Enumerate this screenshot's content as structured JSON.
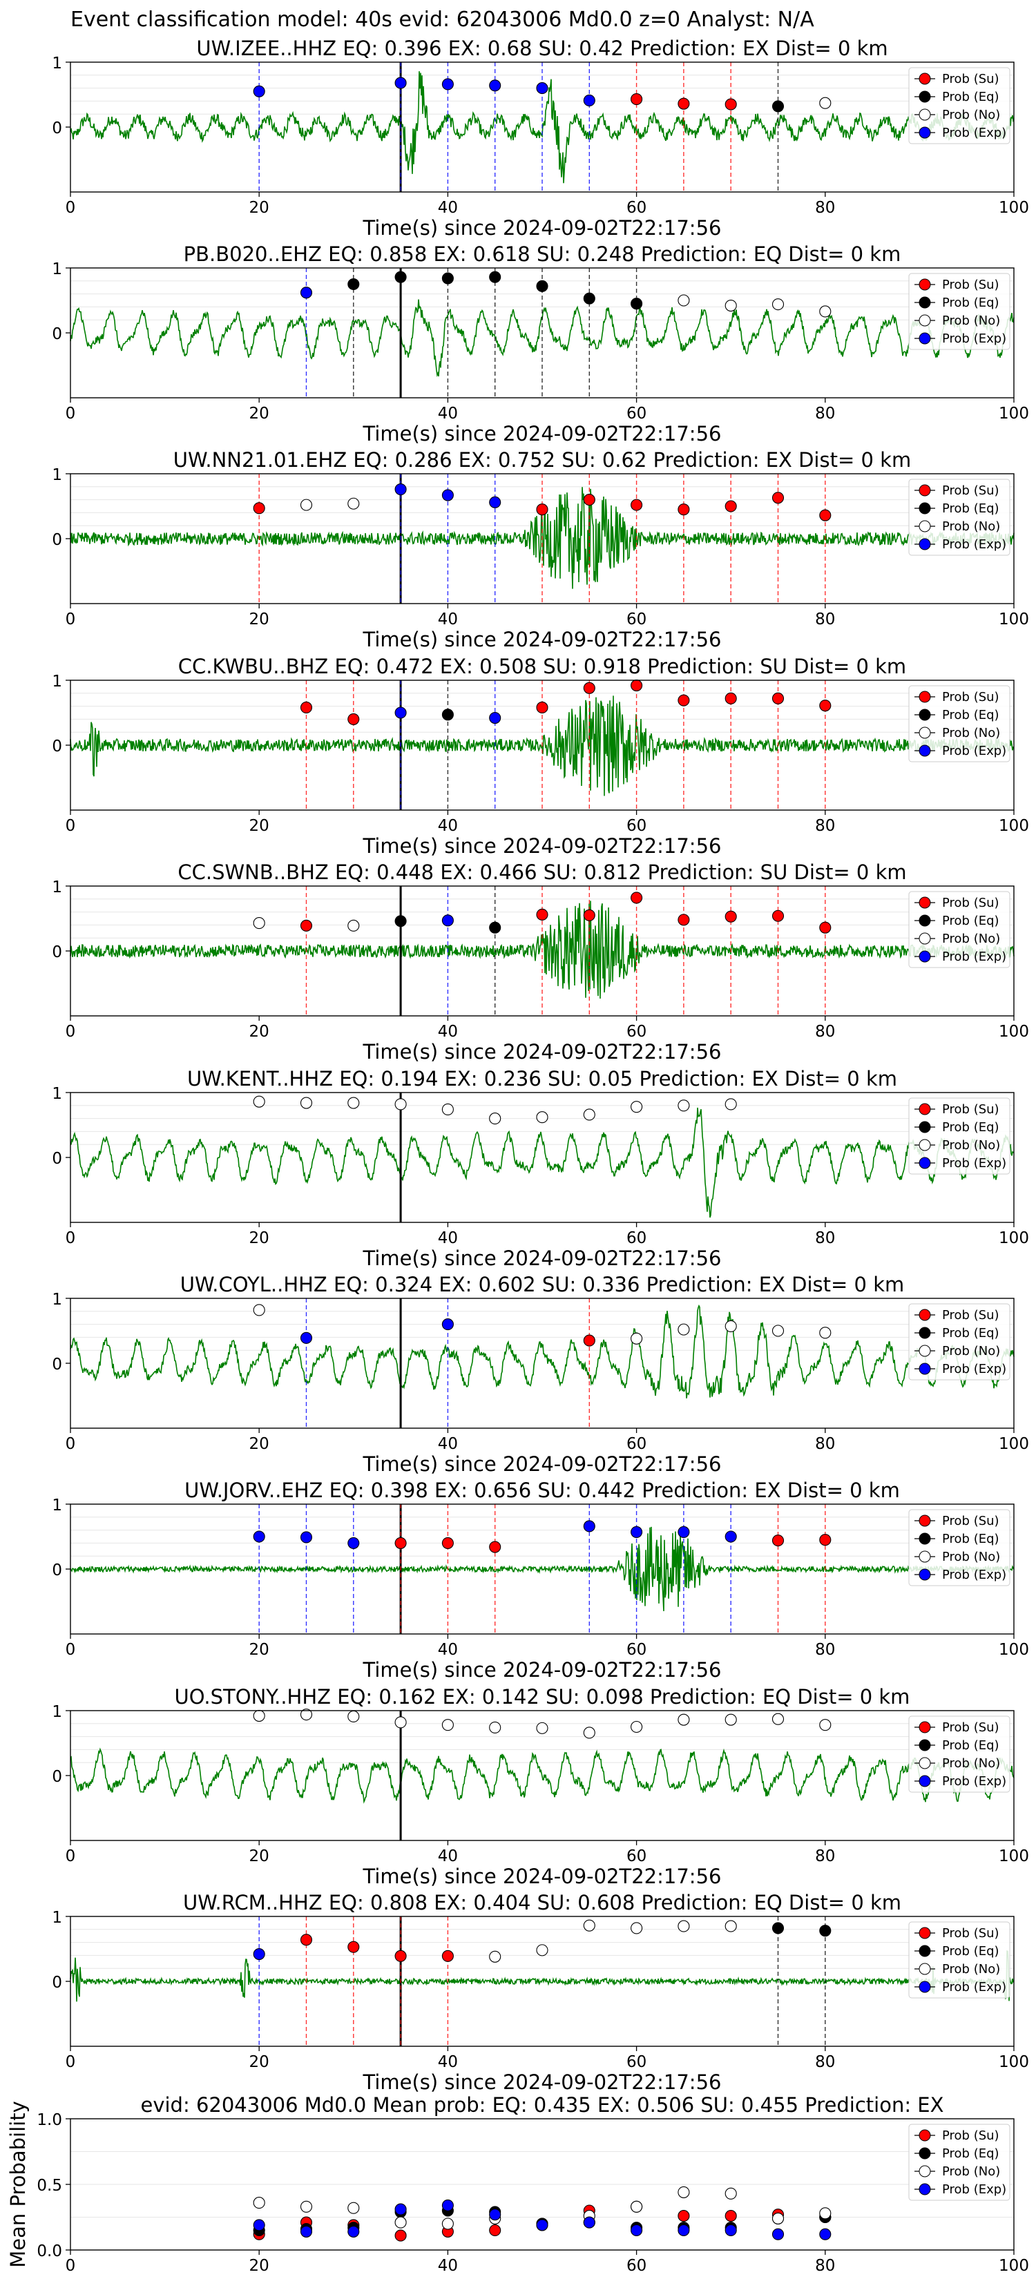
{
  "figure": {
    "suptitle": "Event classification model: 40s evid: 62043006 Md0.0 z=0 Analyst: N/A",
    "colors": {
      "waveform": "#008000",
      "su": "#ff0000",
      "eq": "#000000",
      "no": "#ffffff",
      "exp": "#0000ff",
      "grid": "#e6e6e6"
    },
    "legend": [
      "Prob (Su)",
      "Prob (Eq)",
      "Prob (No)",
      "Prob (Exp)"
    ]
  },
  "chart_data": [
    {
      "type": "line",
      "title": "UW.IZEE..HHZ   EQ: 0.396  EX: 0.68  SU: 0.42   Prediction: EX    Dist= 0 km",
      "xlabel": "Time(s) since 2024-09-02T22:17:56",
      "xlim": [
        0,
        100
      ],
      "xticks": [
        0,
        20,
        40,
        60,
        80,
        100
      ],
      "ylim": [
        -1,
        1
      ],
      "yticks": [
        0,
        1
      ],
      "waveform": {
        "style": "normal",
        "burst": [
          [
            35,
            41,
            1.0
          ],
          [
            50,
            56,
            1.0
          ]
        ]
      },
      "origin_time": 35,
      "points": [
        {
          "t": 20,
          "p": 0.55,
          "c": "exp"
        },
        {
          "t": 35,
          "p": 0.68,
          "c": "exp"
        },
        {
          "t": 40,
          "p": 0.66,
          "c": "exp"
        },
        {
          "t": 45,
          "p": 0.64,
          "c": "exp"
        },
        {
          "t": 50,
          "p": 0.6,
          "c": "exp"
        },
        {
          "t": 55,
          "p": 0.41,
          "c": "exp"
        },
        {
          "t": 60,
          "p": 0.43,
          "c": "su"
        },
        {
          "t": 65,
          "p": 0.36,
          "c": "su"
        },
        {
          "t": 70,
          "p": 0.35,
          "c": "su"
        },
        {
          "t": 75,
          "p": 0.32,
          "c": "eq"
        },
        {
          "t": 80,
          "p": 0.37,
          "c": "no"
        }
      ]
    },
    {
      "type": "line",
      "title": "PB.B020..EHZ   EQ: 0.858  EX: 0.618  SU: 0.248   Prediction: EQ    Dist= 0 km",
      "xlabel": "Time(s) since 2024-09-02T22:17:56",
      "xlim": [
        0,
        100
      ],
      "xticks": [
        0,
        20,
        40,
        60,
        80,
        100
      ],
      "ylim": [
        -1,
        1
      ],
      "yticks": [
        0,
        1
      ],
      "waveform": {
        "style": "smooth",
        "burst": [
          [
            35,
            46,
            0.7
          ]
        ]
      },
      "origin_time": 35,
      "points": [
        {
          "t": 25,
          "p": 0.62,
          "c": "exp"
        },
        {
          "t": 30,
          "p": 0.75,
          "c": "eq"
        },
        {
          "t": 35,
          "p": 0.86,
          "c": "eq"
        },
        {
          "t": 40,
          "p": 0.84,
          "c": "eq"
        },
        {
          "t": 45,
          "p": 0.86,
          "c": "eq"
        },
        {
          "t": 50,
          "p": 0.72,
          "c": "eq"
        },
        {
          "t": 55,
          "p": 0.53,
          "c": "eq"
        },
        {
          "t": 60,
          "p": 0.45,
          "c": "eq"
        },
        {
          "t": 65,
          "p": 0.5,
          "c": "no"
        },
        {
          "t": 70,
          "p": 0.42,
          "c": "no"
        },
        {
          "t": 75,
          "p": 0.44,
          "c": "no"
        },
        {
          "t": 80,
          "p": 0.33,
          "c": "no"
        }
      ]
    },
    {
      "type": "line",
      "title": "UW.NN21.01.EHZ   EQ: 0.286  EX: 0.752  SU: 0.62   Prediction: EX    Dist= 0 km",
      "xlabel": "Time(s) since 2024-09-02T22:17:56",
      "xlim": [
        0,
        100
      ],
      "xticks": [
        0,
        20,
        40,
        60,
        80,
        100
      ],
      "ylim": [
        -1,
        1
      ],
      "yticks": [
        0,
        1
      ],
      "waveform": {
        "style": "noisy",
        "burst": [
          [
            48,
            70,
            1.0
          ]
        ]
      },
      "origin_time": 35,
      "points": [
        {
          "t": 20,
          "p": 0.47,
          "c": "su"
        },
        {
          "t": 25,
          "p": 0.52,
          "c": "no"
        },
        {
          "t": 30,
          "p": 0.54,
          "c": "no"
        },
        {
          "t": 35,
          "p": 0.76,
          "c": "exp"
        },
        {
          "t": 40,
          "p": 0.67,
          "c": "exp"
        },
        {
          "t": 45,
          "p": 0.56,
          "c": "exp"
        },
        {
          "t": 50,
          "p": 0.45,
          "c": "su"
        },
        {
          "t": 55,
          "p": 0.6,
          "c": "su"
        },
        {
          "t": 60,
          "p": 0.52,
          "c": "su"
        },
        {
          "t": 65,
          "p": 0.45,
          "c": "su"
        },
        {
          "t": 70,
          "p": 0.5,
          "c": "su"
        },
        {
          "t": 75,
          "p": 0.63,
          "c": "su"
        },
        {
          "t": 80,
          "p": 0.36,
          "c": "su"
        }
      ]
    },
    {
      "type": "line",
      "title": "CC.KWBU..BHZ   EQ: 0.472  EX: 0.508  SU: 0.918   Prediction: SU    Dist= 0 km",
      "xlabel": "Time(s) since 2024-09-02T22:17:56",
      "xlim": [
        0,
        100
      ],
      "xticks": [
        0,
        20,
        40,
        60,
        80,
        100
      ],
      "ylim": [
        -1,
        1
      ],
      "yticks": [
        0,
        1
      ],
      "waveform": {
        "style": "noisy",
        "burst": [
          [
            2,
            4,
            0.8
          ],
          [
            50,
            72,
            1.0
          ]
        ]
      },
      "origin_time": 35,
      "points": [
        {
          "t": 25,
          "p": 0.58,
          "c": "su"
        },
        {
          "t": 30,
          "p": 0.4,
          "c": "su"
        },
        {
          "t": 35,
          "p": 0.5,
          "c": "exp"
        },
        {
          "t": 40,
          "p": 0.47,
          "c": "eq"
        },
        {
          "t": 45,
          "p": 0.42,
          "c": "exp"
        },
        {
          "t": 50,
          "p": 0.58,
          "c": "su"
        },
        {
          "t": 55,
          "p": 0.88,
          "c": "su"
        },
        {
          "t": 60,
          "p": 0.92,
          "c": "su"
        },
        {
          "t": 65,
          "p": 0.69,
          "c": "su"
        },
        {
          "t": 70,
          "p": 0.72,
          "c": "su"
        },
        {
          "t": 75,
          "p": 0.72,
          "c": "su"
        },
        {
          "t": 80,
          "p": 0.61,
          "c": "su"
        }
      ]
    },
    {
      "type": "line",
      "title": "CC.SWNB..BHZ   EQ: 0.448  EX: 0.466  SU: 0.812   Prediction: SU    Dist= 0 km",
      "xlabel": "Time(s) since 2024-09-02T22:17:56",
      "xlim": [
        0,
        100
      ],
      "xticks": [
        0,
        20,
        40,
        60,
        80,
        100
      ],
      "ylim": [
        -1,
        1
      ],
      "yticks": [
        0,
        1
      ],
      "waveform": {
        "style": "noisy",
        "burst": [
          [
            49,
            70,
            1.0
          ]
        ]
      },
      "origin_time": 35,
      "points": [
        {
          "t": 20,
          "p": 0.43,
          "c": "no"
        },
        {
          "t": 25,
          "p": 0.39,
          "c": "su"
        },
        {
          "t": 30,
          "p": 0.39,
          "c": "no"
        },
        {
          "t": 35,
          "p": 0.46,
          "c": "eq"
        },
        {
          "t": 40,
          "p": 0.47,
          "c": "exp"
        },
        {
          "t": 45,
          "p": 0.36,
          "c": "eq"
        },
        {
          "t": 50,
          "p": 0.56,
          "c": "su"
        },
        {
          "t": 55,
          "p": 0.55,
          "c": "su"
        },
        {
          "t": 60,
          "p": 0.82,
          "c": "su"
        },
        {
          "t": 65,
          "p": 0.48,
          "c": "su"
        },
        {
          "t": 70,
          "p": 0.53,
          "c": "su"
        },
        {
          "t": 75,
          "p": 0.54,
          "c": "su"
        },
        {
          "t": 80,
          "p": 0.36,
          "c": "su"
        }
      ]
    },
    {
      "type": "line",
      "title": "UW.KENT..HHZ   EQ: 0.194  EX: 0.236  SU: 0.05   Prediction: EX    Dist= 0 km",
      "xlabel": "Time(s) since 2024-09-02T22:17:56",
      "xlim": [
        0,
        100
      ],
      "xticks": [
        0,
        20,
        40,
        60,
        80,
        100
      ],
      "ylim": [
        -1,
        1
      ],
      "yticks": [
        0,
        1
      ],
      "waveform": {
        "style": "smooth",
        "burst": [
          [
            65,
            75,
            1.0
          ]
        ]
      },
      "origin_time": 35,
      "points": [
        {
          "t": 20,
          "p": 0.86,
          "c": "no"
        },
        {
          "t": 25,
          "p": 0.84,
          "c": "no"
        },
        {
          "t": 30,
          "p": 0.84,
          "c": "no"
        },
        {
          "t": 35,
          "p": 0.82,
          "c": "no"
        },
        {
          "t": 40,
          "p": 0.74,
          "c": "no"
        },
        {
          "t": 45,
          "p": 0.6,
          "c": "no"
        },
        {
          "t": 50,
          "p": 0.62,
          "c": "no"
        },
        {
          "t": 55,
          "p": 0.66,
          "c": "no"
        },
        {
          "t": 60,
          "p": 0.78,
          "c": "no"
        },
        {
          "t": 65,
          "p": 0.8,
          "c": "no"
        },
        {
          "t": 70,
          "p": 0.82,
          "c": "no"
        }
      ]
    },
    {
      "type": "line",
      "title": "UW.COYL..HHZ   EQ: 0.324  EX: 0.602  SU: 0.336   Prediction: EX    Dist= 0 km",
      "xlabel": "Time(s) since 2024-09-02T22:17:56",
      "xlim": [
        0,
        100
      ],
      "xticks": [
        0,
        20,
        40,
        60,
        80,
        100
      ],
      "ylim": [
        -1,
        1
      ],
      "yticks": [
        0,
        1
      ],
      "waveform": {
        "style": "smooth",
        "burst": [
          [
            55,
            100,
            0.8
          ]
        ]
      },
      "origin_time": 35,
      "points": [
        {
          "t": 20,
          "p": 0.82,
          "c": "no"
        },
        {
          "t": 25,
          "p": 0.39,
          "c": "exp"
        },
        {
          "t": 40,
          "p": 0.6,
          "c": "exp"
        },
        {
          "t": 55,
          "p": 0.35,
          "c": "su"
        },
        {
          "t": 60,
          "p": 0.38,
          "c": "no"
        },
        {
          "t": 65,
          "p": 0.52,
          "c": "no"
        },
        {
          "t": 70,
          "p": 0.57,
          "c": "no"
        },
        {
          "t": 75,
          "p": 0.5,
          "c": "no"
        },
        {
          "t": 80,
          "p": 0.47,
          "c": "no"
        }
      ]
    },
    {
      "type": "line",
      "title": "UW.JORV..EHZ   EQ: 0.398  EX: 0.656  SU: 0.442   Prediction: EX    Dist= 0 km",
      "xlabel": "Time(s) since 2024-09-02T22:17:56",
      "xlim": [
        0,
        100
      ],
      "xticks": [
        0,
        20,
        40,
        60,
        80,
        100
      ],
      "ylim": [
        -1,
        1
      ],
      "yticks": [
        0,
        1
      ],
      "waveform": {
        "style": "quiet",
        "burst": [
          [
            58,
            75,
            1.0
          ]
        ]
      },
      "origin_time": 35,
      "points": [
        {
          "t": 20,
          "p": 0.5,
          "c": "exp"
        },
        {
          "t": 25,
          "p": 0.49,
          "c": "exp"
        },
        {
          "t": 30,
          "p": 0.4,
          "c": "exp"
        },
        {
          "t": 35,
          "p": 0.4,
          "c": "su"
        },
        {
          "t": 40,
          "p": 0.4,
          "c": "su"
        },
        {
          "t": 45,
          "p": 0.34,
          "c": "su"
        },
        {
          "t": 55,
          "p": 0.66,
          "c": "exp"
        },
        {
          "t": 60,
          "p": 0.57,
          "c": "exp"
        },
        {
          "t": 65,
          "p": 0.57,
          "c": "exp"
        },
        {
          "t": 70,
          "p": 0.5,
          "c": "exp"
        },
        {
          "t": 75,
          "p": 0.44,
          "c": "su"
        },
        {
          "t": 80,
          "p": 0.45,
          "c": "su"
        }
      ]
    },
    {
      "type": "line",
      "title": "UO.STONY..HHZ   EQ: 0.162  EX: 0.142  SU: 0.098   Prediction: EQ    Dist= 0 km",
      "xlabel": "Time(s) since 2024-09-02T22:17:56",
      "xlim": [
        0,
        100
      ],
      "xticks": [
        0,
        20,
        40,
        60,
        80,
        100
      ],
      "ylim": [
        -1,
        1
      ],
      "yticks": [
        0,
        1
      ],
      "waveform": {
        "style": "smooth",
        "burst": []
      },
      "origin_time": 35,
      "points": [
        {
          "t": 20,
          "p": 0.92,
          "c": "no"
        },
        {
          "t": 25,
          "p": 0.94,
          "c": "no"
        },
        {
          "t": 30,
          "p": 0.91,
          "c": "no"
        },
        {
          "t": 35,
          "p": 0.82,
          "c": "no"
        },
        {
          "t": 40,
          "p": 0.78,
          "c": "no"
        },
        {
          "t": 45,
          "p": 0.74,
          "c": "no"
        },
        {
          "t": 50,
          "p": 0.73,
          "c": "no"
        },
        {
          "t": 55,
          "p": 0.66,
          "c": "no"
        },
        {
          "t": 60,
          "p": 0.75,
          "c": "no"
        },
        {
          "t": 65,
          "p": 0.86,
          "c": "no"
        },
        {
          "t": 70,
          "p": 0.86,
          "c": "no"
        },
        {
          "t": 75,
          "p": 0.87,
          "c": "no"
        },
        {
          "t": 80,
          "p": 0.78,
          "c": "no"
        }
      ]
    },
    {
      "type": "line",
      "title": "UW.RCM..HHZ   EQ: 0.808  EX: 0.404  SU: 0.608   Prediction: EQ    Dist= 0 km",
      "xlabel": "Time(s) since 2024-09-02T22:17:56",
      "xlim": [
        0,
        100
      ],
      "xticks": [
        0,
        20,
        40,
        60,
        80,
        100
      ],
      "ylim": [
        -1,
        1
      ],
      "yticks": [
        0,
        1
      ],
      "waveform": {
        "style": "quiet",
        "burst": [
          [
            0,
            2,
            0.8
          ],
          [
            18,
            20,
            0.6
          ],
          [
            91,
            92,
            0.8
          ],
          [
            99,
            100,
            0.9
          ]
        ]
      },
      "origin_time": 35,
      "points": [
        {
          "t": 20,
          "p": 0.42,
          "c": "exp"
        },
        {
          "t": 25,
          "p": 0.64,
          "c": "su"
        },
        {
          "t": 30,
          "p": 0.53,
          "c": "su"
        },
        {
          "t": 35,
          "p": 0.39,
          "c": "su"
        },
        {
          "t": 40,
          "p": 0.39,
          "c": "su"
        },
        {
          "t": 45,
          "p": 0.38,
          "c": "no"
        },
        {
          "t": 50,
          "p": 0.48,
          "c": "no"
        },
        {
          "t": 55,
          "p": 0.86,
          "c": "no"
        },
        {
          "t": 60,
          "p": 0.82,
          "c": "no"
        },
        {
          "t": 65,
          "p": 0.85,
          "c": "no"
        },
        {
          "t": 70,
          "p": 0.85,
          "c": "no"
        },
        {
          "t": 75,
          "p": 0.82,
          "c": "eq"
        },
        {
          "t": 80,
          "p": 0.78,
          "c": "eq"
        }
      ]
    },
    {
      "type": "scatter",
      "title": "evid: 62043006  Md0.0   Mean prob:   EQ: 0.435  EX: 0.506  SU: 0.455   Prediction: EX",
      "xlabel": "",
      "ylabel": "Mean Probability",
      "xlim": [
        0,
        100
      ],
      "xticks": [
        0,
        20,
        40,
        60,
        80,
        100
      ],
      "ylim": [
        0,
        1
      ],
      "yticks": [
        0.0,
        0.5,
        1.0
      ],
      "ytick_labels": [
        "0.0",
        "0.5",
        "1.0"
      ],
      "series": [
        {
          "name": "Prob (Su)",
          "c": "su",
          "x": [
            20,
            25,
            30,
            35,
            40,
            45,
            50,
            55,
            60,
            65,
            70,
            75,
            80
          ],
          "y": [
            0.12,
            0.21,
            0.19,
            0.11,
            0.14,
            0.15,
            0.2,
            0.3,
            0.33,
            0.26,
            0.26,
            0.27,
            0.25
          ]
        },
        {
          "name": "Prob (Eq)",
          "c": "eq",
          "x": [
            20,
            25,
            30,
            35,
            40,
            45,
            50,
            55,
            60,
            65,
            70,
            75,
            80
          ],
          "y": [
            0.15,
            0.16,
            0.17,
            0.29,
            0.3,
            0.29,
            0.2,
            0.21,
            0.17,
            0.17,
            0.17,
            0.24,
            0.25
          ]
        },
        {
          "name": "Prob (No)",
          "c": "no",
          "x": [
            20,
            25,
            30,
            35,
            40,
            45,
            50,
            55,
            60,
            65,
            70,
            75,
            80
          ],
          "y": [
            0.36,
            0.33,
            0.32,
            0.21,
            0.2,
            0.24,
            0.19,
            0.26,
            0.33,
            0.44,
            0.43,
            0.24,
            0.28
          ]
        },
        {
          "name": "Prob (Exp)",
          "c": "exp",
          "x": [
            20,
            25,
            30,
            35,
            40,
            45,
            50,
            55,
            60,
            65,
            70,
            75,
            80
          ],
          "y": [
            0.19,
            0.14,
            0.14,
            0.31,
            0.34,
            0.27,
            0.19,
            0.21,
            0.15,
            0.15,
            0.15,
            0.12,
            0.12
          ]
        }
      ]
    }
  ]
}
